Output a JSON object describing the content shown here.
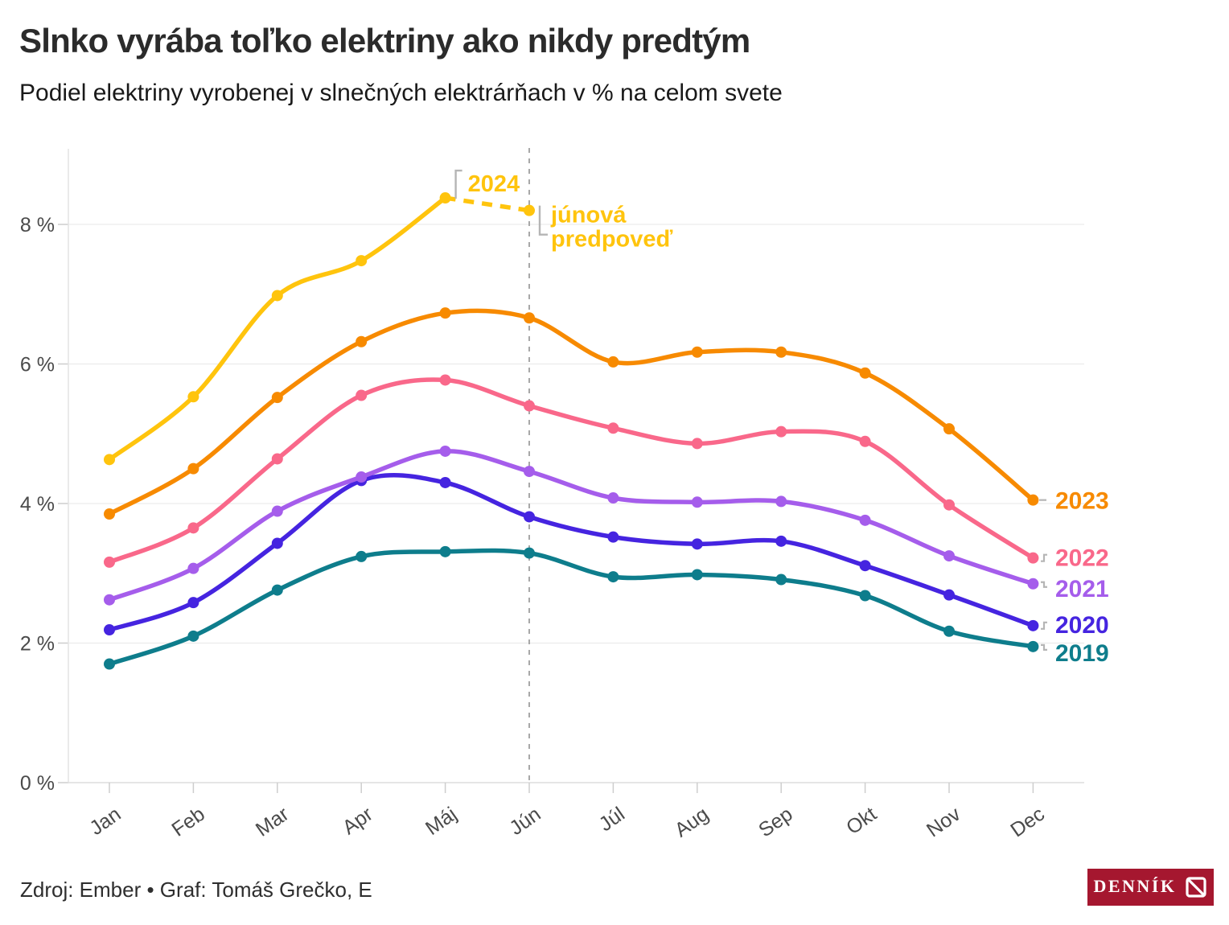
{
  "header": {
    "title": "Slnko vyrába toľko elektriny ako nikdy predtým",
    "subtitle": "Podiel elektriny vyrobenej v slnečných elektrárňach v % na celom svete"
  },
  "footer": {
    "source": "Zdroj: Ember • Graf: Tomáš Grečko, E",
    "logo": {
      "text": "DENNÍK",
      "n": "N"
    }
  },
  "chart_data": {
    "type": "line",
    "categories": [
      "Jan",
      "Feb",
      "Mar",
      "Apr",
      "Máj",
      "Jún",
      "Júl",
      "Aug",
      "Sep",
      "Okt",
      "Nov",
      "Dec"
    ],
    "unit": "%",
    "y_ticks": [
      {
        "value": 0,
        "label": "0 %"
      },
      {
        "value": 2,
        "label": "2 %"
      },
      {
        "value": 4,
        "label": "4 %"
      },
      {
        "value": 6,
        "label": "6 %"
      },
      {
        "value": 8,
        "label": "8 %"
      }
    ],
    "ylim": [
      0,
      9.1
    ],
    "grid": true,
    "forecast_divider_month": "Jún",
    "series": [
      {
        "name": "2019",
        "color": "#0e7d8c",
        "values": [
          1.7,
          2.1,
          2.76,
          3.24,
          3.31,
          3.29,
          2.95,
          2.98,
          2.91,
          2.68,
          2.17,
          1.95
        ]
      },
      {
        "name": "2020",
        "color": "#4524e0",
        "values": [
          2.19,
          2.58,
          3.43,
          4.33,
          4.3,
          3.81,
          3.52,
          3.42,
          3.46,
          3.11,
          2.69,
          2.25
        ]
      },
      {
        "name": "2021",
        "color": "#a55deb",
        "values": [
          2.62,
          3.07,
          3.89,
          4.38,
          4.75,
          4.46,
          4.08,
          4.02,
          4.03,
          3.76,
          3.25,
          2.85
        ]
      },
      {
        "name": "2022",
        "color": "#f9688a",
        "values": [
          3.16,
          3.65,
          4.64,
          5.55,
          5.77,
          5.4,
          5.08,
          4.86,
          5.03,
          4.89,
          3.98,
          3.22
        ]
      },
      {
        "name": "2023",
        "color": "#f78a00",
        "values": [
          3.85,
          4.5,
          5.52,
          6.32,
          6.73,
          6.66,
          6.03,
          6.17,
          6.17,
          5.87,
          5.07,
          4.05
        ]
      },
      {
        "name": "2024",
        "color": "#ffc40d",
        "values": [
          4.63,
          5.53,
          6.98,
          7.48,
          8.38,
          null,
          null,
          null,
          null,
          null,
          null,
          null
        ],
        "forecast": {
          "month": "Jún",
          "month_index": 5,
          "value": 8.2
        }
      }
    ],
    "annotations": {
      "peak_series_label": "2024",
      "forecast_label_lines": [
        "júnová",
        "predpoveď"
      ]
    }
  }
}
